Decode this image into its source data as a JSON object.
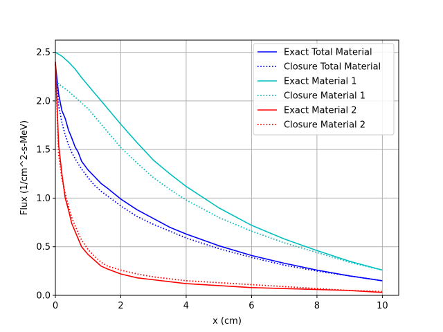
{
  "chart_data": {
    "type": "line",
    "title": "",
    "xlabel": "x (cm)",
    "ylabel": "Flux (1/cm^2-s-MeV)",
    "xlim": [
      0,
      10.5
    ],
    "ylim": [
      0,
      2.625
    ],
    "xticks": [
      0,
      2,
      4,
      6,
      8,
      10
    ],
    "xtick_labels": [
      "0",
      "2",
      "4",
      "6",
      "8",
      "10"
    ],
    "yticks": [
      0.0,
      0.5,
      1.0,
      1.5,
      2.0,
      2.5
    ],
    "ytick_labels": [
      "0.0",
      "0.5",
      "1.0",
      "1.5",
      "2.0",
      "2.5"
    ],
    "grid": true,
    "legend_position": "top-right",
    "series": [
      {
        "name": "Exact Total Material",
        "color": "#0000ff",
        "style": "solid",
        "x": [
          0,
          0.1,
          0.2,
          0.3,
          0.4,
          0.5,
          0.6,
          0.7,
          0.8,
          1.0,
          1.2,
          1.4,
          1.6,
          2.0,
          2.5,
          3.0,
          3.5,
          4.0,
          5.0,
          6.0,
          7.0,
          8.0,
          9.0,
          10.0
        ],
        "y": [
          2.38,
          2.07,
          1.9,
          1.82,
          1.7,
          1.62,
          1.53,
          1.47,
          1.38,
          1.29,
          1.22,
          1.15,
          1.1,
          0.99,
          0.88,
          0.79,
          0.7,
          0.63,
          0.51,
          0.41,
          0.33,
          0.26,
          0.2,
          0.15
        ]
      },
      {
        "name": "Closure Total Material",
        "color": "#0000ff",
        "style": "dotted",
        "x": [
          0,
          0.1,
          0.2,
          0.3,
          0.4,
          0.5,
          0.6,
          0.7,
          0.8,
          1.0,
          1.2,
          1.4,
          1.6,
          2.0,
          2.5,
          3.0,
          3.5,
          4.0,
          5.0,
          6.0,
          7.0,
          8.0,
          9.0,
          10.0
        ],
        "y": [
          2.38,
          1.95,
          1.78,
          1.65,
          1.55,
          1.47,
          1.41,
          1.35,
          1.3,
          1.21,
          1.13,
          1.07,
          1.02,
          0.92,
          0.81,
          0.73,
          0.66,
          0.59,
          0.48,
          0.39,
          0.31,
          0.25,
          0.2,
          0.15
        ]
      },
      {
        "name": "Exact Material 1",
        "color": "#00bfbf",
        "style": "solid",
        "x": [
          0,
          0.2,
          0.4,
          0.6,
          0.8,
          1.0,
          1.5,
          2.0,
          2.5,
          3.0,
          3.5,
          4.0,
          5.0,
          6.0,
          7.0,
          8.0,
          9.0,
          10.0
        ],
        "y": [
          2.5,
          2.46,
          2.4,
          2.33,
          2.24,
          2.16,
          1.96,
          1.76,
          1.57,
          1.39,
          1.25,
          1.12,
          0.9,
          0.72,
          0.58,
          0.46,
          0.35,
          0.26
        ]
      },
      {
        "name": "Closure Material 1",
        "color": "#00bfbf",
        "style": "dotted",
        "x": [
          0,
          0.2,
          0.4,
          0.6,
          0.8,
          1.0,
          1.5,
          2.0,
          2.5,
          3.0,
          3.5,
          4.0,
          5.0,
          6.0,
          7.0,
          8.0,
          9.0,
          10.0
        ],
        "y": [
          2.2,
          2.15,
          2.1,
          2.04,
          1.98,
          1.92,
          1.72,
          1.52,
          1.36,
          1.21,
          1.09,
          0.98,
          0.8,
          0.66,
          0.54,
          0.44,
          0.34,
          0.26
        ]
      },
      {
        "name": "Exact Material 2",
        "color": "#ff0000",
        "style": "solid",
        "x": [
          0,
          0.1,
          0.2,
          0.3,
          0.4,
          0.5,
          0.6,
          0.7,
          0.8,
          1.0,
          1.2,
          1.4,
          1.6,
          2.0,
          2.5,
          3.0,
          3.5,
          4.0,
          5.0,
          6.0,
          7.0,
          8.0,
          9.0,
          10.0
        ],
        "y": [
          2.4,
          1.55,
          1.25,
          1.0,
          0.88,
          0.74,
          0.66,
          0.58,
          0.5,
          0.42,
          0.36,
          0.3,
          0.27,
          0.22,
          0.18,
          0.16,
          0.14,
          0.12,
          0.1,
          0.08,
          0.07,
          0.06,
          0.05,
          0.03
        ]
      },
      {
        "name": "Closure Material 2",
        "color": "#ff0000",
        "style": "dotted",
        "x": [
          0,
          0.1,
          0.2,
          0.3,
          0.4,
          0.5,
          0.6,
          0.7,
          0.8,
          1.0,
          1.2,
          1.4,
          1.6,
          2.0,
          2.5,
          3.0,
          3.5,
          4.0,
          5.0,
          6.0,
          7.0,
          8.0,
          9.0,
          10.0
        ],
        "y": [
          2.4,
          1.45,
          1.2,
          1.05,
          0.92,
          0.8,
          0.72,
          0.64,
          0.57,
          0.47,
          0.4,
          0.34,
          0.3,
          0.26,
          0.22,
          0.19,
          0.17,
          0.15,
          0.13,
          0.11,
          0.09,
          0.07,
          0.05,
          0.04
        ]
      }
    ]
  }
}
